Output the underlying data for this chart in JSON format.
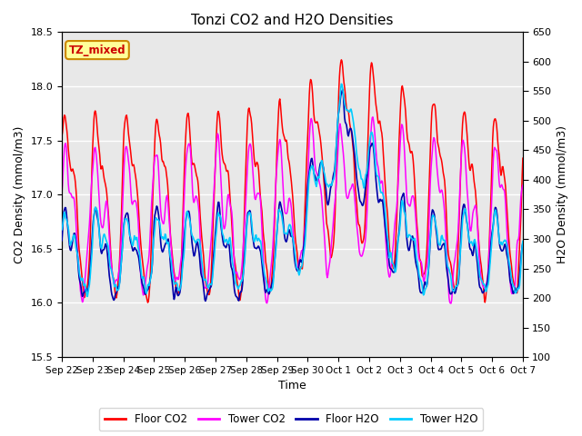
{
  "title": "Tonzi CO2 and H2O Densities",
  "xlabel": "Time",
  "ylabel_left": "CO2 Density (mmol/m3)",
  "ylabel_right": "H2O Density (mmol/m3)",
  "annotation": "TZ_mixed",
  "annotation_bg": "#FFFF99",
  "annotation_border": "#CC8800",
  "ylim_left": [
    15.5,
    18.5
  ],
  "ylim_right": [
    100,
    650
  ],
  "x_tick_labels": [
    "Sep 22",
    "Sep 23",
    "Sep 24",
    "Sep 25",
    "Sep 26",
    "Sep 27",
    "Sep 28",
    "Sep 29",
    "Sep 30",
    "Oct 1",
    "Oct 2",
    "Oct 3",
    "Oct 4",
    "Oct 5",
    "Oct 6",
    "Oct 7"
  ],
  "legend_labels": [
    "Floor CO2",
    "Tower CO2",
    "Floor H2O",
    "Tower H2O"
  ],
  "legend_colors": [
    "#FF0000",
    "#FF00FF",
    "#0000AA",
    "#00CCFF"
  ],
  "line_colors": {
    "floor_co2": "#FF0000",
    "tower_co2": "#FF00FF",
    "floor_h2o": "#0000AA",
    "tower_h2o": "#00CCFF"
  },
  "bg_color": "#E8E8E8",
  "grid_color": "#FFFFFF",
  "n_days": 15,
  "pts_per_day": 48,
  "seed": 7
}
